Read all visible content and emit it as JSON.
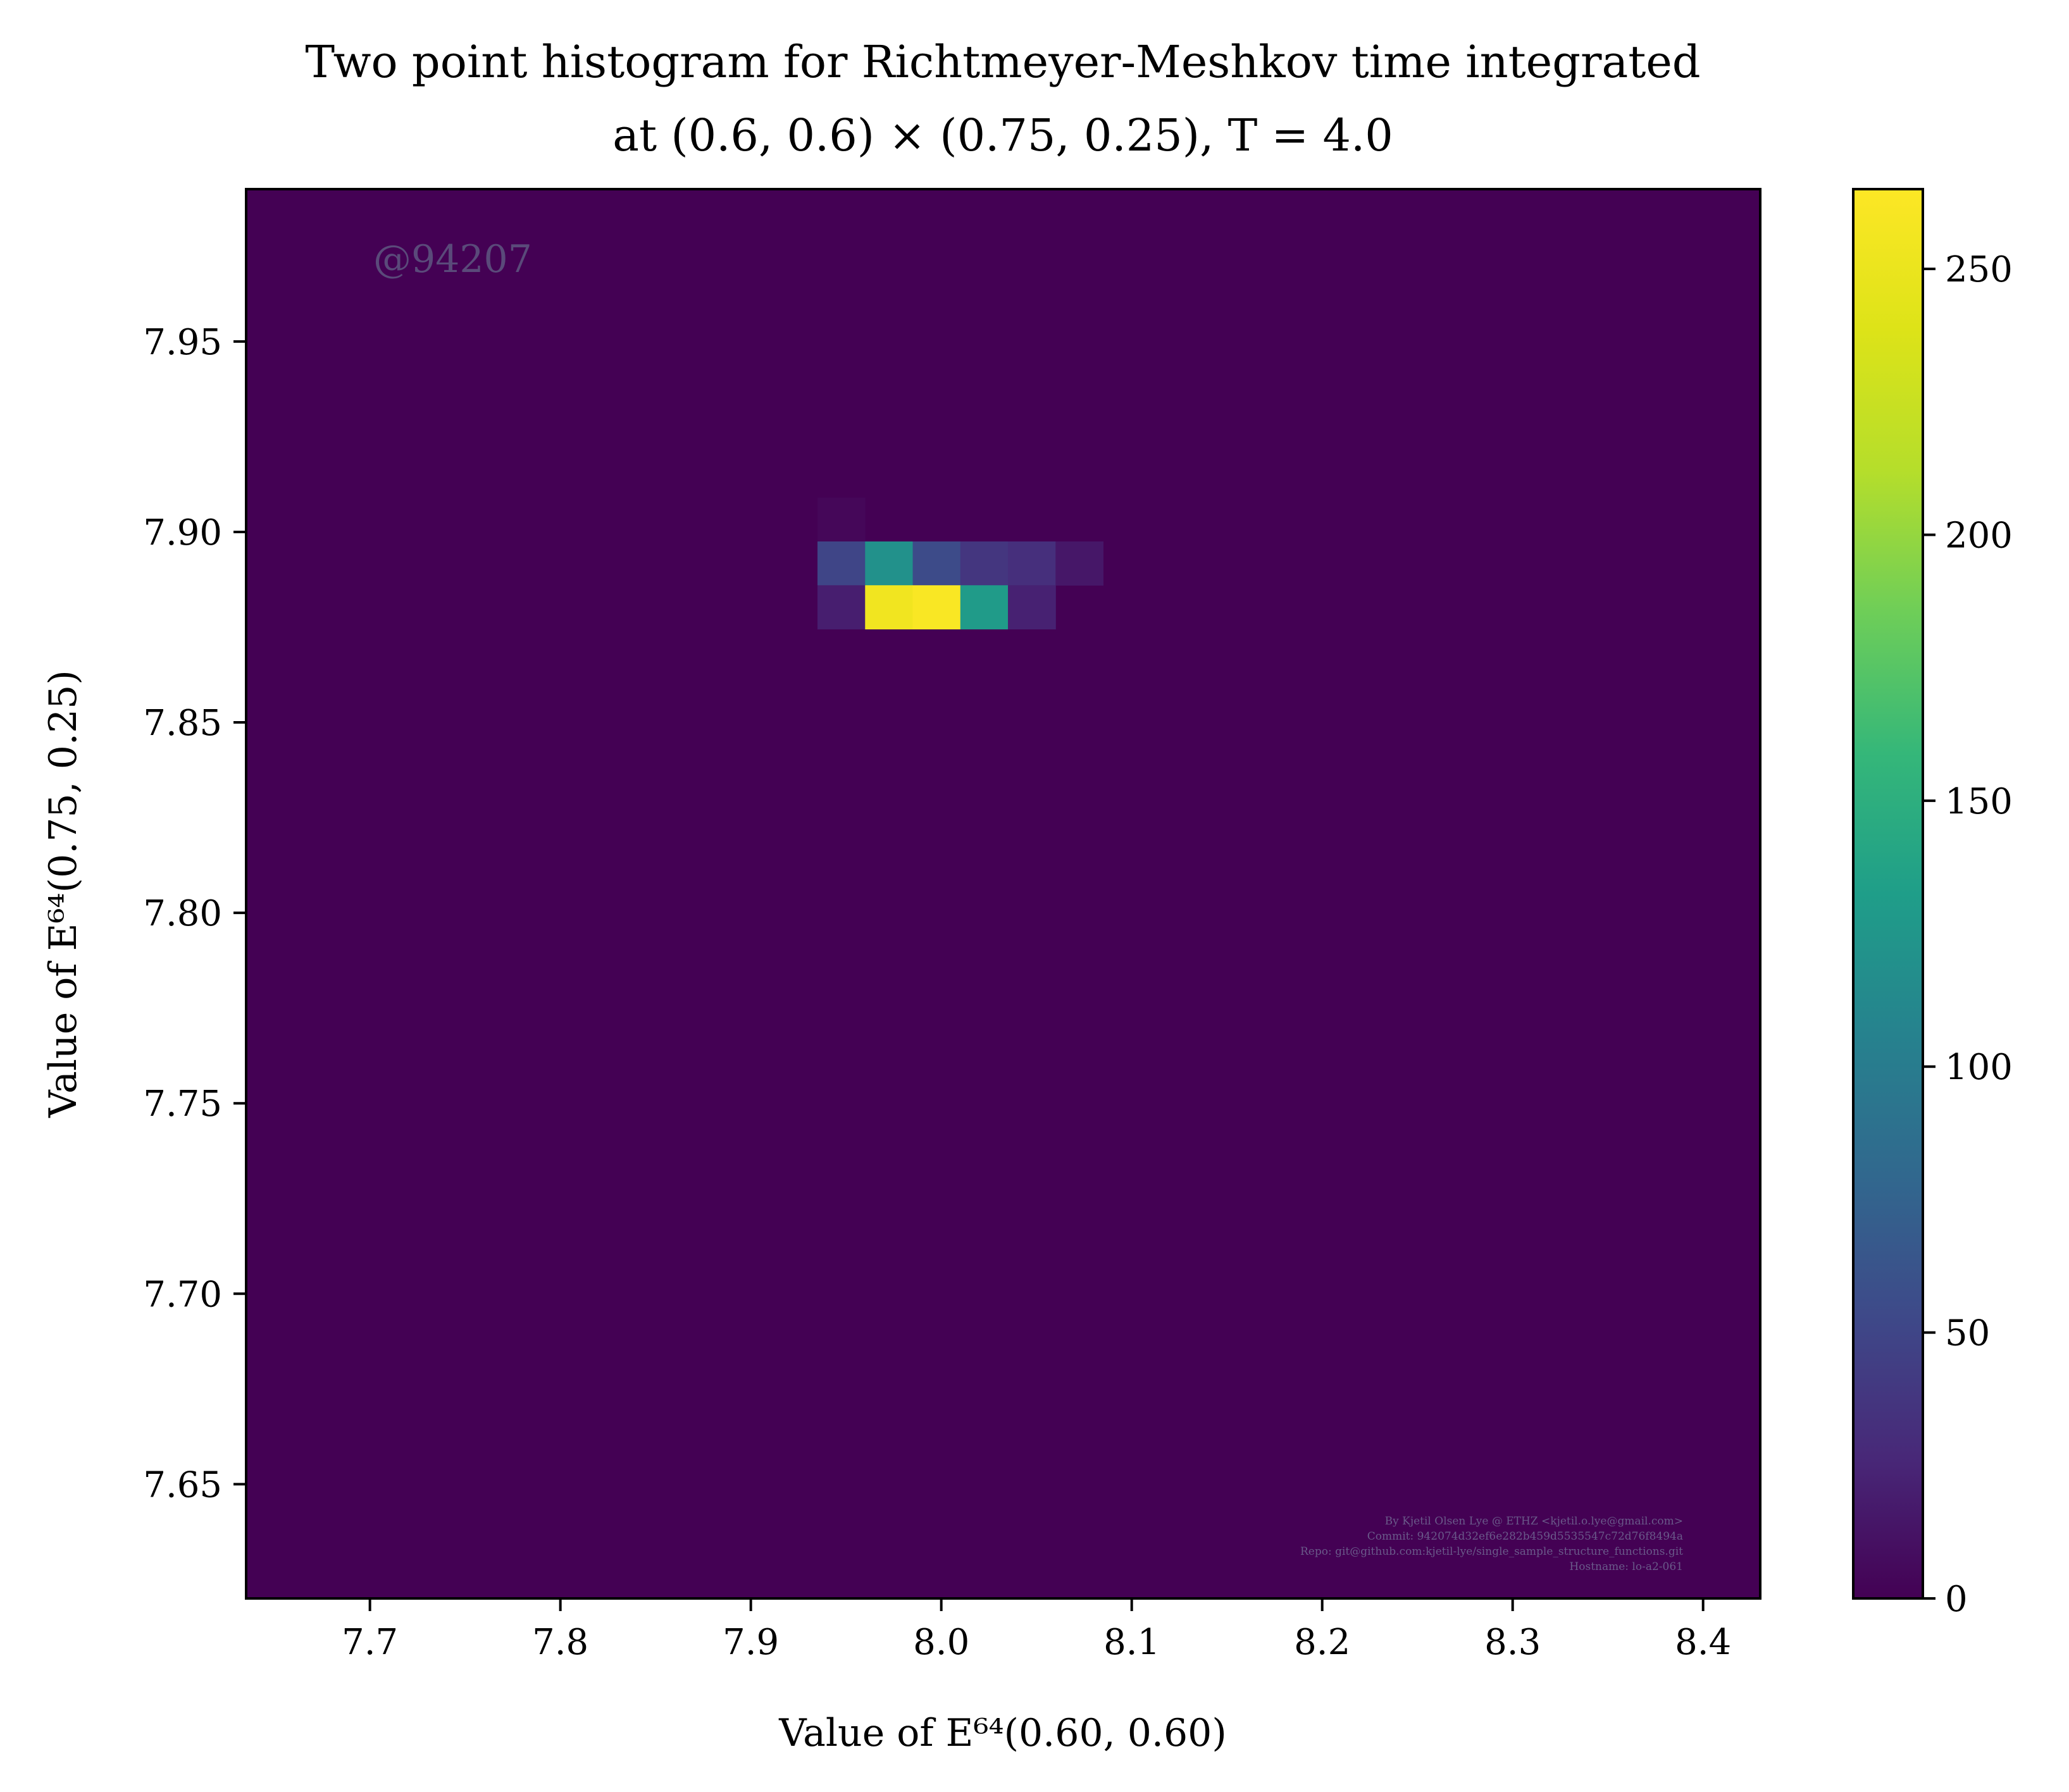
{
  "chart_data": {
    "type": "heatmap",
    "title_lines": [
      "Two point histogram for Richtmeyer-Meshkov time integrated",
      "at (0.6, 0.6) × (0.75, 0.25), T = 4.0"
    ],
    "xlabel": "Value of E⁶⁴(0.60, 0.60)",
    "ylabel": "Value of E⁶⁴(0.75, 0.25)",
    "xlim": [
      7.635,
      8.43
    ],
    "ylim": [
      7.62,
      7.99
    ],
    "x_ticks": [
      "7.7",
      "7.8",
      "7.9",
      "8.0",
      "8.1",
      "8.2",
      "8.3",
      "8.4"
    ],
    "x_tick_values": [
      7.7,
      7.8,
      7.9,
      8.0,
      8.1,
      8.2,
      8.3,
      8.4
    ],
    "y_ticks": [
      "7.65",
      "7.70",
      "7.75",
      "7.80",
      "7.85",
      "7.90",
      "7.95"
    ],
    "y_tick_values": [
      7.65,
      7.7,
      7.75,
      7.8,
      7.85,
      7.9,
      7.95
    ],
    "colorbar": {
      "colormap": "viridis",
      "range": [
        0,
        265
      ],
      "ticks": [
        "0",
        "50",
        "100",
        "150",
        "200",
        "250"
      ],
      "tick_values": [
        0,
        50,
        100,
        150,
        200,
        250
      ]
    },
    "bin_width_x": 0.025,
    "bin_height_y": 0.0115,
    "cells": [
      {
        "x0": 7.935,
        "y0": 7.8975,
        "count": 4
      },
      {
        "x0": 7.935,
        "y0": 7.886,
        "count": 50
      },
      {
        "x0": 7.96,
        "y0": 7.886,
        "count": 120
      },
      {
        "x0": 7.985,
        "y0": 7.886,
        "count": 55
      },
      {
        "x0": 8.01,
        "y0": 7.886,
        "count": 38
      },
      {
        "x0": 8.035,
        "y0": 7.886,
        "count": 32
      },
      {
        "x0": 8.06,
        "y0": 7.886,
        "count": 15
      },
      {
        "x0": 7.935,
        "y0": 7.8745,
        "count": 20
      },
      {
        "x0": 7.96,
        "y0": 7.8745,
        "count": 255
      },
      {
        "x0": 7.985,
        "y0": 7.8745,
        "count": 262
      },
      {
        "x0": 8.01,
        "y0": 7.8745,
        "count": 130
      },
      {
        "x0": 8.035,
        "y0": 7.8745,
        "count": 22
      }
    ],
    "watermark": "@94207",
    "credits": [
      "By Kjetil Olsen Lye @ ETHZ <kjetil.o.lye@gmail.com>",
      "Commit: 942074d32ef6e282b459d5535547c72d76f8494a",
      "Repo: git@github.com:kjetil-lye/single_sample_structure_functions.git",
      "Hostname: lo-a2-061"
    ]
  }
}
